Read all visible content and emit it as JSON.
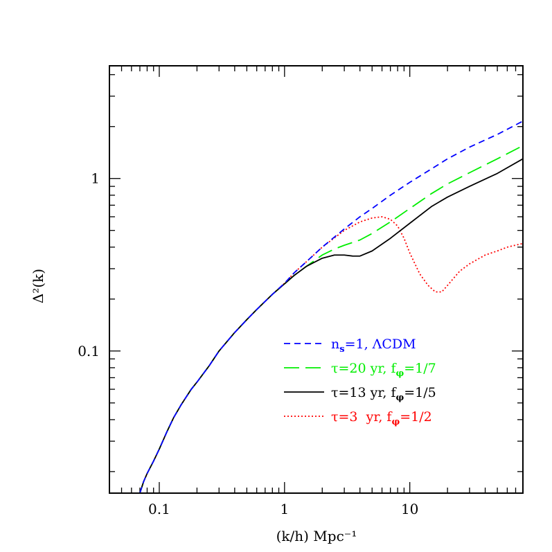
{
  "chart_data": {
    "type": "line",
    "xscale": "log",
    "yscale": "log",
    "xlim": [
      0.04,
      80
    ],
    "ylim": [
      0.015,
      4.5
    ],
    "xlabel": "(k/h) Mpc⁻¹",
    "ylabel": "Δ²(k)",
    "x_tick_labels": [
      {
        "value": 0.1,
        "label": "0.1"
      },
      {
        "value": 1,
        "label": "1"
      },
      {
        "value": 10,
        "label": "10"
      }
    ],
    "y_tick_labels": [
      {
        "value": 0.1,
        "label": "0.1"
      },
      {
        "value": 1,
        "label": "1"
      }
    ],
    "legend_position": "lower-right",
    "series": [
      {
        "id": "lcdm",
        "name": "n_s=1, ΛCDM",
        "legend": {
          "main": "n",
          "sub": "s",
          "rest": "=1, ΛCDM"
        },
        "color": "#0000ff",
        "dash": "short-dash",
        "points": [
          [
            0.07,
            0.015
          ],
          [
            0.075,
            0.0175
          ],
          [
            0.08,
            0.0195
          ],
          [
            0.09,
            0.023
          ],
          [
            0.1,
            0.027
          ],
          [
            0.115,
            0.034
          ],
          [
            0.13,
            0.041
          ],
          [
            0.15,
            0.049
          ],
          [
            0.18,
            0.06
          ],
          [
            0.2,
            0.066
          ],
          [
            0.25,
            0.082
          ],
          [
            0.3,
            0.1
          ],
          [
            0.4,
            0.128
          ],
          [
            0.5,
            0.152
          ],
          [
            0.6,
            0.174
          ],
          [
            0.8,
            0.213
          ],
          [
            1.0,
            0.247
          ],
          [
            1.2,
            0.285
          ],
          [
            1.5,
            0.33
          ],
          [
            2.0,
            0.4
          ],
          [
            3.0,
            0.51
          ],
          [
            4.0,
            0.6
          ],
          [
            5.0,
            0.67
          ],
          [
            7.0,
            0.8
          ],
          [
            10.0,
            0.95
          ],
          [
            15.0,
            1.14
          ],
          [
            20.0,
            1.3
          ],
          [
            30.0,
            1.52
          ],
          [
            50.0,
            1.8
          ],
          [
            80.0,
            2.15
          ]
        ]
      },
      {
        "id": "tau20",
        "name": "τ=20 yr, f_φ=1/7",
        "legend": {
          "main": "τ=20 yr, f",
          "sub": "φ",
          "rest": "=1/7"
        },
        "color": "#00ee00",
        "dash": "long-dash",
        "points": [
          [
            0.07,
            0.015
          ],
          [
            0.075,
            0.0175
          ],
          [
            0.08,
            0.0195
          ],
          [
            0.09,
            0.023
          ],
          [
            0.1,
            0.027
          ],
          [
            0.115,
            0.034
          ],
          [
            0.13,
            0.041
          ],
          [
            0.15,
            0.049
          ],
          [
            0.18,
            0.06
          ],
          [
            0.2,
            0.066
          ],
          [
            0.25,
            0.082
          ],
          [
            0.3,
            0.1
          ],
          [
            0.4,
            0.128
          ],
          [
            0.5,
            0.152
          ],
          [
            0.6,
            0.174
          ],
          [
            0.8,
            0.213
          ],
          [
            1.0,
            0.245
          ],
          [
            1.2,
            0.275
          ],
          [
            1.5,
            0.31
          ],
          [
            2.0,
            0.36
          ],
          [
            2.5,
            0.39
          ],
          [
            3.0,
            0.41
          ],
          [
            4.0,
            0.44
          ],
          [
            5.0,
            0.48
          ],
          [
            7.0,
            0.56
          ],
          [
            10.0,
            0.67
          ],
          [
            15.0,
            0.82
          ],
          [
            20.0,
            0.93
          ],
          [
            30.0,
            1.08
          ],
          [
            50.0,
            1.3
          ],
          [
            80.0,
            1.55
          ]
        ]
      },
      {
        "id": "tau13",
        "name": "τ=13 yr, f_φ=1/5",
        "legend": {
          "main": "τ=13 yr, f",
          "sub": "φ",
          "rest": "=1/5"
        },
        "color": "#000000",
        "dash": "solid",
        "points": [
          [
            0.07,
            0.015
          ],
          [
            0.075,
            0.0175
          ],
          [
            0.08,
            0.0195
          ],
          [
            0.09,
            0.023
          ],
          [
            0.1,
            0.027
          ],
          [
            0.115,
            0.034
          ],
          [
            0.13,
            0.041
          ],
          [
            0.15,
            0.049
          ],
          [
            0.18,
            0.06
          ],
          [
            0.2,
            0.066
          ],
          [
            0.25,
            0.082
          ],
          [
            0.3,
            0.1
          ],
          [
            0.4,
            0.128
          ],
          [
            0.5,
            0.152
          ],
          [
            0.6,
            0.174
          ],
          [
            0.8,
            0.213
          ],
          [
            1.0,
            0.245
          ],
          [
            1.2,
            0.275
          ],
          [
            1.5,
            0.31
          ],
          [
            2.0,
            0.345
          ],
          [
            2.5,
            0.36
          ],
          [
            3.0,
            0.36
          ],
          [
            3.5,
            0.355
          ],
          [
            4.0,
            0.355
          ],
          [
            5.0,
            0.38
          ],
          [
            7.0,
            0.45
          ],
          [
            10.0,
            0.55
          ],
          [
            15.0,
            0.69
          ],
          [
            20.0,
            0.78
          ],
          [
            30.0,
            0.9
          ],
          [
            50.0,
            1.07
          ],
          [
            80.0,
            1.3
          ]
        ]
      },
      {
        "id": "tau3",
        "name": "τ=3 yr, f_φ=1/2",
        "legend": {
          "main": "τ=3  yr, f",
          "sub": "φ",
          "rest": "=1/2"
        },
        "color": "#ff0000",
        "dash": "dotted",
        "points": [
          [
            0.07,
            0.015
          ],
          [
            0.075,
            0.0175
          ],
          [
            0.08,
            0.0195
          ],
          [
            0.09,
            0.023
          ],
          [
            0.1,
            0.027
          ],
          [
            0.115,
            0.034
          ],
          [
            0.13,
            0.041
          ],
          [
            0.15,
            0.049
          ],
          [
            0.18,
            0.06
          ],
          [
            0.2,
            0.066
          ],
          [
            0.25,
            0.082
          ],
          [
            0.3,
            0.1
          ],
          [
            0.4,
            0.128
          ],
          [
            0.5,
            0.152
          ],
          [
            0.6,
            0.174
          ],
          [
            0.8,
            0.213
          ],
          [
            1.0,
            0.247
          ],
          [
            1.2,
            0.285
          ],
          [
            1.5,
            0.33
          ],
          [
            2.0,
            0.4
          ],
          [
            3.0,
            0.5
          ],
          [
            4.0,
            0.56
          ],
          [
            5.0,
            0.59
          ],
          [
            6.0,
            0.6
          ],
          [
            7.0,
            0.58
          ],
          [
            8.0,
            0.53
          ],
          [
            9.0,
            0.45
          ],
          [
            10.0,
            0.37
          ],
          [
            12.0,
            0.28
          ],
          [
            14.0,
            0.24
          ],
          [
            16.0,
            0.22
          ],
          [
            18.0,
            0.22
          ],
          [
            20.0,
            0.24
          ],
          [
            25.0,
            0.29
          ],
          [
            30.0,
            0.32
          ],
          [
            40.0,
            0.36
          ],
          [
            50.0,
            0.38
          ],
          [
            60.0,
            0.4
          ],
          [
            80.0,
            0.42
          ]
        ]
      }
    ]
  }
}
